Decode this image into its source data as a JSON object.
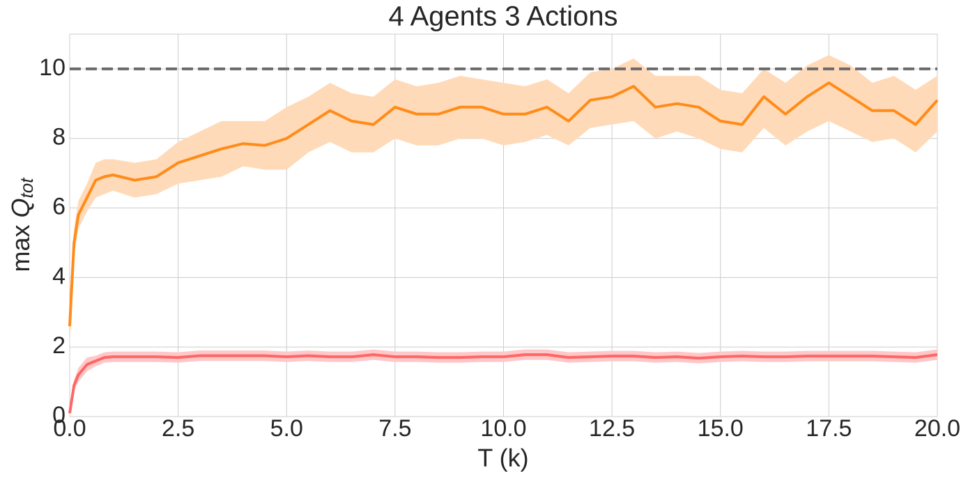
{
  "chart_data": {
    "type": "line",
    "title": "4 Agents 3 Actions",
    "xlabel": "T (k)",
    "ylabel": {
      "prefix": "max",
      "symbol": "Q",
      "subscript": "tot"
    },
    "x": [
      0,
      0.1,
      0.2,
      0.4,
      0.6,
      0.8,
      1.0,
      1.5,
      2.0,
      2.5,
      3.0,
      3.5,
      4.0,
      4.5,
      5.0,
      5.5,
      6.0,
      6.5,
      7.0,
      7.5,
      8.0,
      8.5,
      9.0,
      9.5,
      10.0,
      10.5,
      11.0,
      11.5,
      12.0,
      12.5,
      13.0,
      13.5,
      14.0,
      14.5,
      15.0,
      15.5,
      16.0,
      16.5,
      17.0,
      17.5,
      18.0,
      18.5,
      19.0,
      19.5,
      20.0
    ],
    "series": [
      {
        "color": "#ff8c1a",
        "band_color": "#ffdab8",
        "values": [
          2.6,
          5.0,
          5.8,
          6.3,
          6.8,
          6.9,
          6.95,
          6.8,
          6.9,
          7.3,
          7.5,
          7.7,
          7.85,
          7.8,
          8.0,
          8.4,
          8.8,
          8.5,
          8.4,
          8.9,
          8.7,
          8.7,
          8.9,
          8.9,
          8.7,
          8.7,
          8.9,
          8.5,
          9.1,
          9.2,
          9.5,
          8.9,
          9.0,
          8.9,
          8.5,
          8.4,
          9.2,
          8.7,
          9.2,
          9.6,
          9.2,
          8.8,
          8.8,
          8.4,
          9.1
        ],
        "lower": [
          2.0,
          4.6,
          5.4,
          5.9,
          6.3,
          6.4,
          6.5,
          6.3,
          6.4,
          6.7,
          6.8,
          6.9,
          7.2,
          7.1,
          7.1,
          7.6,
          7.9,
          7.6,
          7.6,
          8.0,
          7.8,
          7.8,
          8.0,
          8.0,
          7.8,
          7.9,
          8.1,
          7.8,
          8.3,
          8.4,
          8.5,
          8.0,
          8.2,
          8.0,
          7.7,
          7.6,
          8.3,
          7.8,
          8.2,
          8.5,
          8.2,
          7.9,
          8.0,
          7.6,
          8.2
        ],
        "upper": [
          3.2,
          5.4,
          6.2,
          6.7,
          7.3,
          7.4,
          7.4,
          7.3,
          7.4,
          7.9,
          8.2,
          8.5,
          8.5,
          8.5,
          8.9,
          9.2,
          9.6,
          9.3,
          9.2,
          9.7,
          9.5,
          9.6,
          9.8,
          9.7,
          9.6,
          9.5,
          9.7,
          9.3,
          9.9,
          10.0,
          10.3,
          9.8,
          9.8,
          9.8,
          9.4,
          9.3,
          10.0,
          9.6,
          10.1,
          10.4,
          10.1,
          9.6,
          9.8,
          9.4,
          9.8
        ]
      },
      {
        "color": "#ff6666",
        "band_color": "#ffc8c8",
        "values": [
          0.1,
          0.9,
          1.2,
          1.5,
          1.6,
          1.7,
          1.72,
          1.72,
          1.72,
          1.7,
          1.75,
          1.75,
          1.75,
          1.75,
          1.72,
          1.75,
          1.72,
          1.72,
          1.78,
          1.72,
          1.72,
          1.7,
          1.7,
          1.72,
          1.72,
          1.78,
          1.78,
          1.7,
          1.72,
          1.74,
          1.74,
          1.7,
          1.72,
          1.68,
          1.72,
          1.74,
          1.72,
          1.72,
          1.74,
          1.74,
          1.74,
          1.74,
          1.72,
          1.7,
          1.78
        ],
        "lower": [
          0.0,
          0.75,
          1.0,
          1.3,
          1.45,
          1.55,
          1.57,
          1.57,
          1.57,
          1.55,
          1.6,
          1.6,
          1.6,
          1.6,
          1.57,
          1.6,
          1.57,
          1.57,
          1.63,
          1.57,
          1.57,
          1.55,
          1.55,
          1.57,
          1.57,
          1.63,
          1.63,
          1.55,
          1.57,
          1.59,
          1.59,
          1.55,
          1.57,
          1.53,
          1.57,
          1.59,
          1.57,
          1.57,
          1.59,
          1.59,
          1.59,
          1.59,
          1.57,
          1.55,
          1.63
        ],
        "upper": [
          0.2,
          1.05,
          1.4,
          1.7,
          1.75,
          1.85,
          1.87,
          1.87,
          1.87,
          1.85,
          1.9,
          1.9,
          1.9,
          1.9,
          1.87,
          1.9,
          1.87,
          1.87,
          1.93,
          1.87,
          1.87,
          1.85,
          1.85,
          1.87,
          1.87,
          1.93,
          1.93,
          1.85,
          1.87,
          1.89,
          1.89,
          1.85,
          1.87,
          1.83,
          1.87,
          1.89,
          1.87,
          1.87,
          1.89,
          1.89,
          1.89,
          1.89,
          1.87,
          1.85,
          1.93
        ]
      }
    ],
    "hline": {
      "value": 10,
      "color": "#6b6b6b"
    },
    "xlim": [
      0,
      20
    ],
    "xticks": [
      {
        "value": 0,
        "label": "0.0"
      },
      2.5,
      {
        "value": 5,
        "label": "5.0"
      },
      7.5,
      {
        "value": 10,
        "label": "10.0"
      },
      12.5,
      {
        "value": 15,
        "label": "15.0"
      },
      17.5,
      {
        "value": 20,
        "label": "20.0"
      }
    ],
    "ylim": [
      0,
      11
    ],
    "yticks": [
      0,
      2,
      4,
      6,
      8,
      10
    ],
    "grid": true
  }
}
